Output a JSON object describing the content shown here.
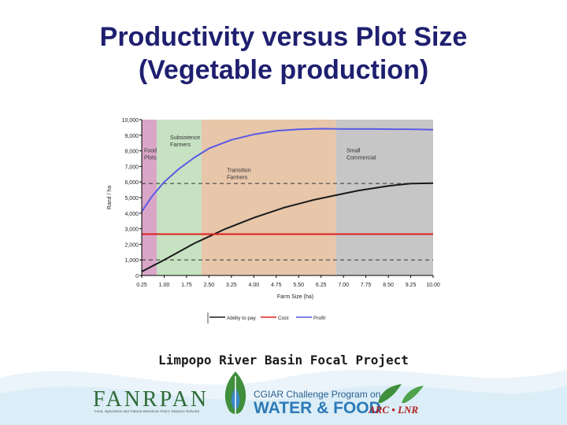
{
  "slide": {
    "title_line1": "Productivity versus Plot Size",
    "title_line2": "(Vegetable production)",
    "footer": "Limpopo River Basin Focal Project"
  },
  "logos": {
    "fanrpan": "FANRPAN",
    "fanrpan_sub": "Food, Agriculture and Natural Resources Policy Analysis Network",
    "cgiar": "CGIAR Challenge Program on",
    "water_food": "WATER & FOOD",
    "arc": "ARC • LNR"
  },
  "chart_data": {
    "type": "line",
    "xlabel": "Farm Size (ha)",
    "ylabel": "Rand / ha",
    "xlim": [
      0.25,
      10.0
    ],
    "ylim": [
      0,
      10000
    ],
    "x_ticks": [
      "0.25",
      "1.00",
      "1.75",
      "2.50",
      "3.25",
      "4.00",
      "4.75",
      "5.50",
      "6.25",
      "7.00",
      "7.75",
      "8.50",
      "9.25",
      "10.00"
    ],
    "y_ticks": [
      "0",
      "1,000",
      "2,000",
      "3,000",
      "4,000",
      "5,000",
      "6,000",
      "7,000",
      "8,000",
      "9,000",
      "10,000"
    ],
    "regions": [
      {
        "label": "Food Plots",
        "x0": 0.25,
        "x1": 0.75,
        "color": "#d9a6c8"
      },
      {
        "label": "Subsistence Farmers",
        "x0": 0.75,
        "x1": 2.25,
        "color": "#c6e2c2"
      },
      {
        "label": "Transition Farmers",
        "x0": 2.25,
        "x1": 6.75,
        "color": "#e7c6aa"
      },
      {
        "label": "Small Commercial",
        "x0": 6.75,
        "x1": 10.0,
        "color": "#c6c6c6"
      }
    ],
    "series": [
      {
        "name": "Ability to pay",
        "color": "#1a1a1a",
        "x": [
          0.25,
          1.0,
          2.0,
          3.0,
          4.0,
          5.0,
          6.0,
          6.75,
          7.5,
          8.5,
          9.25,
          10.0
        ],
        "y": [
          250,
          1000,
          2050,
          2950,
          3700,
          4350,
          4850,
          5150,
          5450,
          5750,
          5900,
          5920
        ]
      },
      {
        "name": "Cost",
        "color": "#e02020",
        "x": [
          0.25,
          10.0
        ],
        "y": [
          2650,
          2650
        ]
      },
      {
        "name": "Profit",
        "color": "#5a5ae6",
        "x": [
          0.25,
          0.6,
          1.0,
          1.5,
          2.0,
          2.5,
          3.25,
          4.0,
          4.75,
          5.5,
          6.25,
          7.0,
          8.0,
          9.25,
          10.0
        ],
        "y": [
          4100,
          5100,
          6000,
          6850,
          7550,
          8150,
          8700,
          9050,
          9280,
          9380,
          9420,
          9400,
          9400,
          9380,
          9360
        ]
      }
    ],
    "reference_lines": [
      5900,
      1000
    ],
    "grid": false,
    "legend_position": "bottom"
  }
}
